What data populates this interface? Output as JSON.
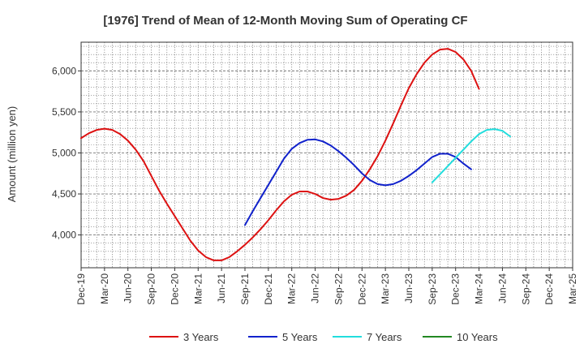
{
  "chart_data": {
    "type": "line",
    "title": "[1976]  Trend of Mean of 12-Month Moving Sum of Operating CF",
    "xlabel": "",
    "ylabel": "Amount (million yen)",
    "ylim": [
      3600,
      6350
    ],
    "yticks": [
      4000,
      4500,
      5000,
      5500,
      6000
    ],
    "ytick_labels": [
      "4,000",
      "4,500",
      "5,000",
      "5,500",
      "6,000"
    ],
    "x_categories": [
      "Dec-19",
      "Mar-20",
      "Jun-20",
      "Sep-20",
      "Dec-20",
      "Mar-21",
      "Jun-21",
      "Sep-21",
      "Dec-21",
      "Mar-22",
      "Jun-22",
      "Sep-22",
      "Dec-22",
      "Mar-23",
      "Jun-23",
      "Sep-23",
      "Dec-23",
      "Mar-24",
      "Jun-24",
      "Sep-24",
      "Dec-24",
      "Mar-25"
    ],
    "grid": true,
    "legend_position": "bottom",
    "series": [
      {
        "name": "3 Years",
        "color": "#dd1111",
        "start_index": 0,
        "values": [
          5180,
          5240,
          5280,
          5295,
          5280,
          5230,
          5150,
          5040,
          4900,
          4720,
          4540,
          4380,
          4230,
          4080,
          3930,
          3810,
          3730,
          3690,
          3690,
          3730,
          3800,
          3880,
          3970,
          4070,
          4180,
          4300,
          4410,
          4490,
          4530,
          4530,
          4500,
          4450,
          4430,
          4440,
          4480,
          4550,
          4660,
          4800,
          4960,
          5150,
          5360,
          5580,
          5790,
          5960,
          6100,
          6200,
          6260,
          6270,
          6230,
          6140,
          6000,
          5780
        ]
      },
      {
        "name": "5 Years",
        "color": "#1122cc",
        "start_index": 21,
        "values": [
          4120,
          4290,
          4450,
          4610,
          4770,
          4930,
          5050,
          5120,
          5160,
          5165,
          5140,
          5090,
          5020,
          4940,
          4850,
          4750,
          4670,
          4620,
          4605,
          4620,
          4660,
          4720,
          4790,
          4870,
          4950,
          4990,
          4990,
          4950,
          4870,
          4800
        ]
      },
      {
        "name": "7 Years",
        "color": "#22dddd",
        "start_index": 45,
        "values": [
          4640,
          4740,
          4840,
          4940,
          5040,
          5140,
          5230,
          5280,
          5290,
          5270,
          5200
        ]
      },
      {
        "name": "10 Years",
        "color": "#228822",
        "start_index": 0,
        "values": []
      }
    ]
  }
}
